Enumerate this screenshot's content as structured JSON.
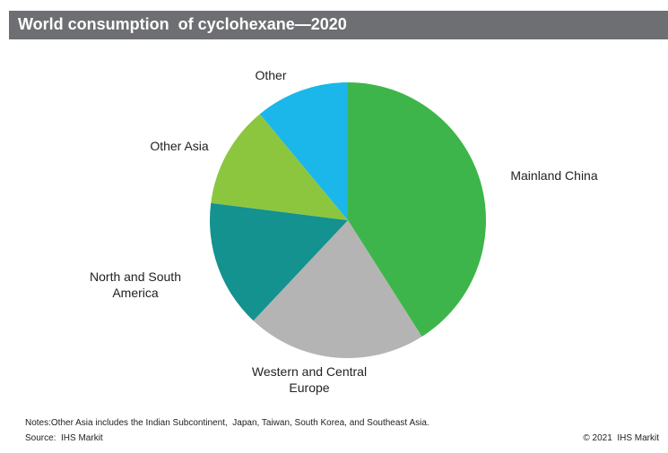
{
  "chart_data": {
    "type": "pie",
    "title": "World consumption  of cyclohexane—2020",
    "categories": [
      "Mainland China",
      "Western and Central Europe",
      "North and South America",
      "Other Asia",
      "Other"
    ],
    "values": [
      41,
      21,
      15,
      12,
      11
    ],
    "colors": [
      "#3db54a",
      "#b4b4b4",
      "#13928f",
      "#8cc63f",
      "#1bb6ea"
    ],
    "notes": "Notes:Other Asia includes the Indian Subcontinent,  Japan, Taiwan, South Korea, and Southeast Asia.",
    "source": "Source:  IHS Markit",
    "copyright": "© 2021  IHS Markit"
  }
}
